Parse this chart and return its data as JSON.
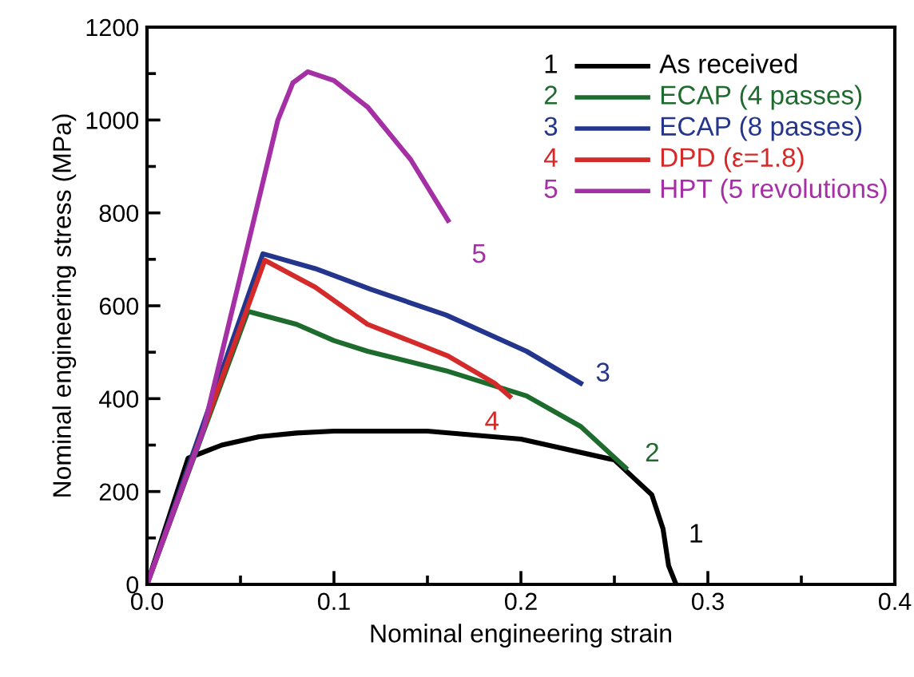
{
  "chart_data": {
    "type": "line",
    "xlabel": "Nominal engineering strain",
    "ylabel": "Nominal engineering stress (MPa)",
    "xlim": [
      0,
      0.4
    ],
    "xticks": [
      {
        "value": 0,
        "label": "0.0"
      },
      0.1,
      0.2,
      0.3,
      0.4
    ],
    "ylim": [
      0,
      1200
    ],
    "yticks": [
      0,
      200,
      400,
      600,
      800,
      1000,
      1200
    ],
    "grid": false,
    "legend": "top right",
    "marker": "none",
    "line_style": "solid",
    "series": [
      {
        "name": "As received",
        "color": "#000000",
        "x": [
          0,
          0.022,
          0.04,
          0.06,
          0.08,
          0.1,
          0.15,
          0.2,
          0.25,
          0.27,
          0.276,
          0.279,
          0.283
        ],
        "values": [
          0,
          272,
          300,
          318,
          326,
          330,
          330,
          313,
          268,
          193,
          120,
          40,
          0
        ]
      },
      {
        "name": "ECAP (4 passes)",
        "color": "#1e6b2e",
        "x": [
          0,
          0.054,
          0.08,
          0.1,
          0.118,
          0.16,
          0.203,
          0.232,
          0.256
        ],
        "values": [
          0,
          588,
          560,
          525,
          502,
          460,
          406,
          340,
          251
        ]
      },
      {
        "name": "ECAP (8 passes)",
        "color": "#23358c",
        "x": [
          0,
          0.062,
          0.09,
          0.12,
          0.16,
          0.203,
          0.232
        ],
        "values": [
          0,
          712,
          680,
          635,
          580,
          502,
          433
        ]
      },
      {
        "name": "DPD (ε=1.8)",
        "color": "#d42a2a",
        "x": [
          0,
          0.063,
          0.09,
          0.118,
          0.161,
          0.186,
          0.194
        ],
        "values": [
          0,
          698,
          640,
          560,
          492,
          433,
          405
        ]
      },
      {
        "name": "HPT (5 revolutions)",
        "color": "#a52fa5",
        "x": [
          0,
          0.03,
          0.07,
          0.078,
          0.086,
          0.1,
          0.118,
          0.141,
          0.161
        ],
        "values": [
          0,
          330,
          1000,
          1080,
          1104,
          1085,
          1028,
          915,
          784
        ]
      }
    ],
    "annotations": [
      "1",
      "2",
      "3",
      "4",
      "5"
    ]
  }
}
